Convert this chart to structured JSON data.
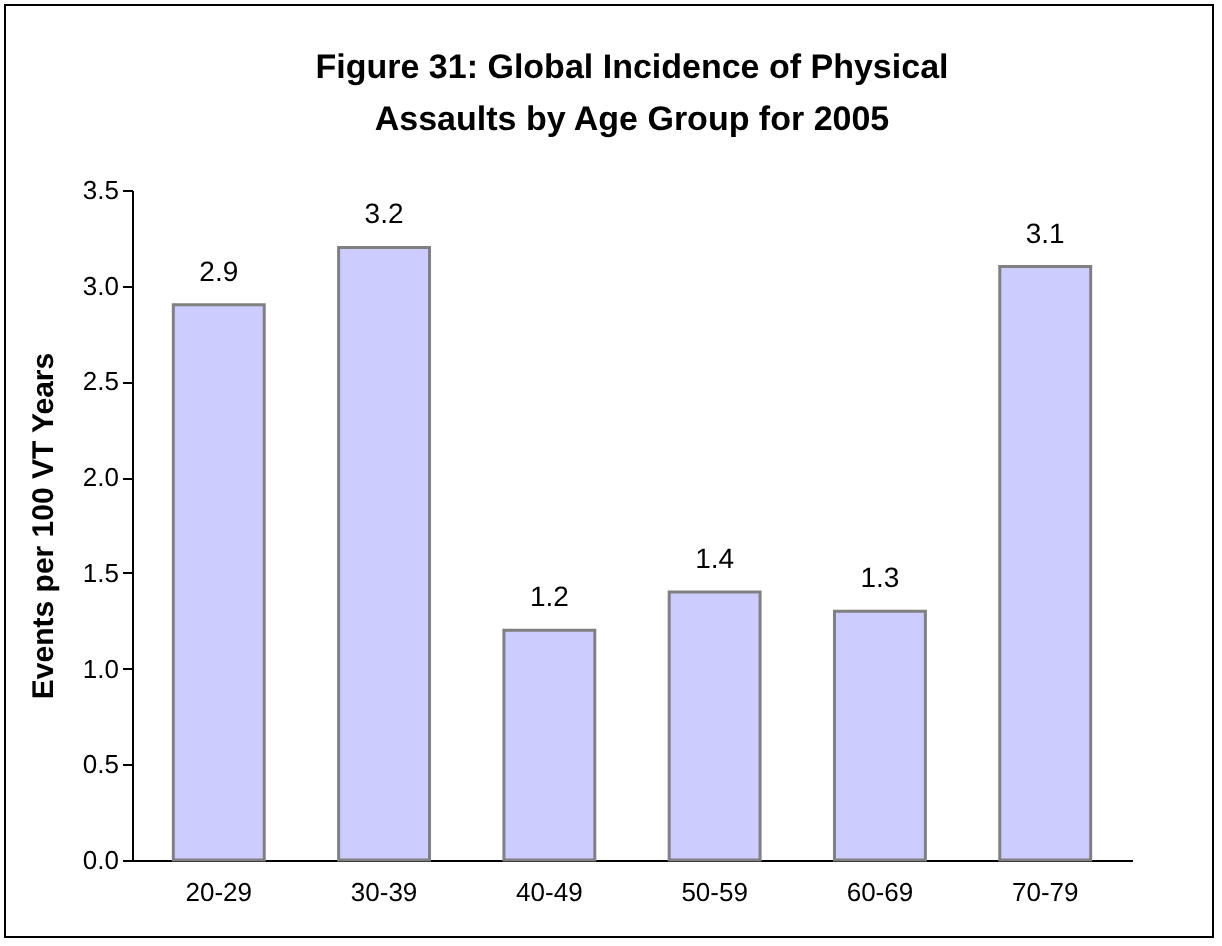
{
  "chart_data": {
    "type": "bar",
    "title": "Figure 31:  Global Incidence of Physical\nAssaults by Age Group for 2005",
    "ylabel": "Events per 100 VT Years",
    "categories": [
      "20-29",
      "30-39",
      "40-49",
      "50-59",
      "60-69",
      "70-79"
    ],
    "values": [
      2.9,
      3.2,
      1.2,
      1.4,
      1.3,
      3.1
    ],
    "color": "#ccccff",
    "data_labels": true,
    "ylim": [
      0,
      3.5
    ],
    "yticks": [
      {
        "value": 0,
        "label": "0.0"
      },
      0.5,
      {
        "value": 1,
        "label": "1.0"
      },
      1.5,
      {
        "value": 2,
        "label": "2.0"
      },
      2.5,
      {
        "value": 3,
        "label": "3.0"
      },
      3.5
    ],
    "grid": false
  }
}
